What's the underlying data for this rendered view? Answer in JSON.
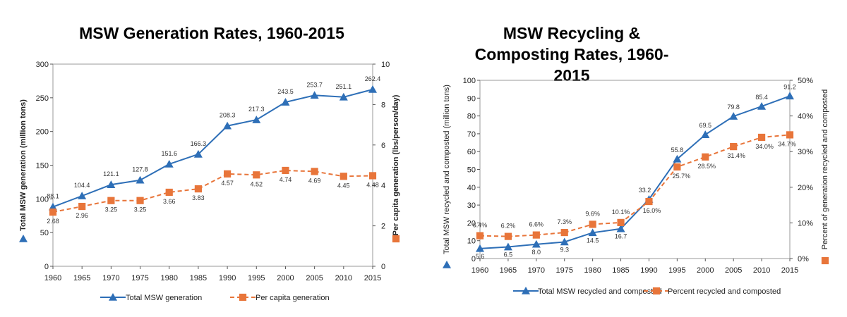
{
  "chart_data": [
    {
      "type": "line",
      "title": "MSW Generation Rates, 1960-2015",
      "x": [
        1960,
        1965,
        1970,
        1975,
        1980,
        1985,
        1990,
        1995,
        2000,
        2005,
        2010,
        2015
      ],
      "xlabel": "",
      "ylabel": "Total MSW generation (million tons)",
      "ylim": [
        0,
        300
      ],
      "yticks": [
        0,
        50,
        100,
        150,
        200,
        250,
        300
      ],
      "y2label": "Per capita generation (lbs/person/day)",
      "y2lim": [
        0,
        10
      ],
      "y2ticks": [
        0,
        2,
        4,
        6,
        8,
        10
      ],
      "grid": false,
      "legend": "bottom",
      "series": [
        {
          "name": "Total MSW generation",
          "axis": "left",
          "marker": "triangle",
          "color": "#2e6fb7",
          "dashed": false,
          "values": [
            88.1,
            104.4,
            121.1,
            127.8,
            151.6,
            166.3,
            208.3,
            217.3,
            243.5,
            253.7,
            251.1,
            262.4
          ],
          "labels": [
            "88.1",
            "104.4",
            "121.1",
            "127.8",
            "151.6",
            "166.3",
            "208.3",
            "217.3",
            "243.5",
            "253.7",
            "251.1",
            "262.4"
          ]
        },
        {
          "name": "Per capita generation",
          "axis": "right",
          "marker": "square",
          "color": "#e8753a",
          "dashed": true,
          "values": [
            2.68,
            2.96,
            3.25,
            3.25,
            3.66,
            3.83,
            4.57,
            4.52,
            4.74,
            4.69,
            4.45,
            4.48
          ],
          "labels": [
            "2.68",
            "2.96",
            "3.25",
            "3.25",
            "3.66",
            "3.83",
            "4.57",
            "4.52",
            "4.74",
            "4.69",
            "4.45",
            "4.48"
          ]
        }
      ]
    },
    {
      "type": "line",
      "title": "MSW Recycling & Composting Rates, 1960-2015",
      "x": [
        1960,
        1965,
        1970,
        1975,
        1980,
        1985,
        1990,
        1995,
        2000,
        2005,
        2010,
        2015
      ],
      "xlabel": "",
      "ylabel": "Total MSW recycled and composted (million tons)",
      "ylim": [
        0,
        100
      ],
      "yticks": [
        0,
        10,
        20,
        30,
        40,
        50,
        60,
        70,
        80,
        90,
        100
      ],
      "y2label": "Percent of generation recycled and composted",
      "y2lim": [
        0,
        50
      ],
      "y2ticks": [
        "0%",
        "10%",
        "20%",
        "30%",
        "40%",
        "50%"
      ],
      "grid": false,
      "legend": "bottom",
      "series": [
        {
          "name": "Total MSW recycled and composted",
          "axis": "left",
          "marker": "triangle",
          "color": "#2e6fb7",
          "dashed": false,
          "values": [
            5.6,
            6.5,
            8.0,
            9.3,
            14.5,
            16.7,
            33.2,
            55.8,
            69.5,
            79.8,
            85.4,
            91.2
          ],
          "labels": [
            "5.6",
            "6.5",
            "8.0",
            "9.3",
            "14.5",
            "16.7",
            "33.2",
            "55.8",
            "69.5",
            "79.8",
            "85.4",
            "91.2"
          ]
        },
        {
          "name": "Percent recycled and composted",
          "axis": "right",
          "marker": "square",
          "color": "#e8753a",
          "dashed": true,
          "values": [
            6.4,
            6.2,
            6.6,
            7.3,
            9.6,
            10.1,
            16.0,
            25.7,
            28.5,
            31.4,
            34.0,
            34.7
          ],
          "labels": [
            "6.4%",
            "6.2%",
            "6.6%",
            "7.3%",
            "9.6%",
            "10.1%",
            "16.0%",
            "25.7%",
            "28.5%",
            "31.4%",
            "34.0%",
            "34.7%"
          ]
        }
      ]
    }
  ]
}
